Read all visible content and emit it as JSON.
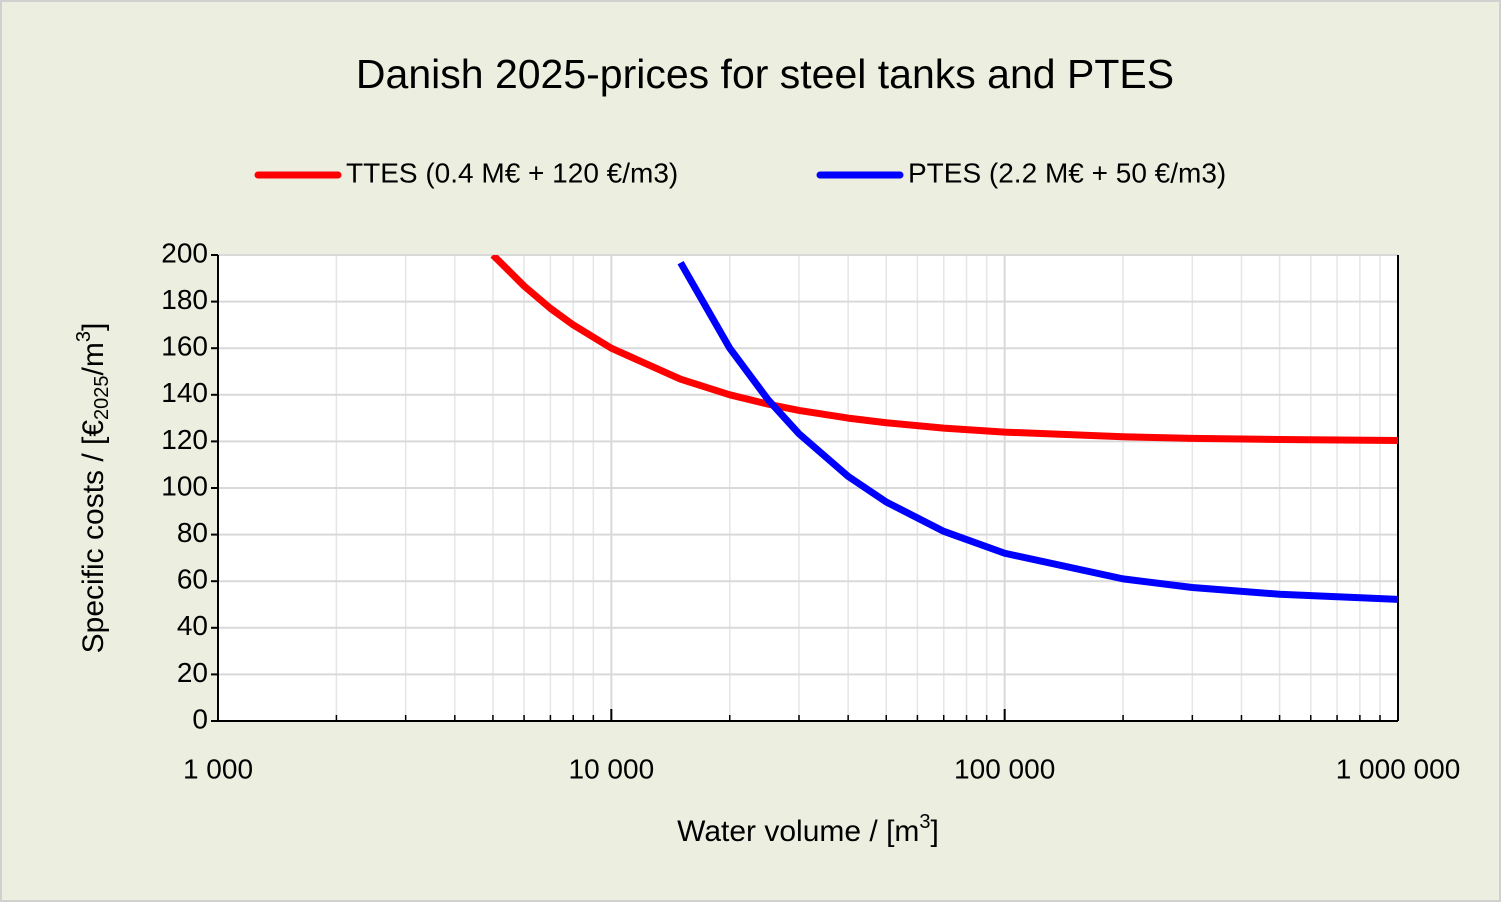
{
  "chart_data": {
    "type": "line",
    "title": "Danish 2025-prices for steel tanks and PTES",
    "x_label": [
      "Water volume / [m",
      "3",
      "]"
    ],
    "y_label": [
      "Specific costs / [€",
      "2025",
      "/m",
      "3",
      "]"
    ],
    "x": [
      5000,
      6000,
      7000,
      8000,
      10000,
      15000,
      20000,
      25000,
      30000,
      40000,
      50000,
      70000,
      100000,
      200000,
      300000,
      500000,
      1000000
    ],
    "series": [
      {
        "name": "TTES (0.4 M€ + 120 €/m3)",
        "color": "#ff0000",
        "values": [
          200,
          186.7,
          177.1,
          170,
          160,
          146.7,
          140,
          136,
          133.3,
          130,
          128,
          125.7,
          124,
          122,
          121.3,
          120.8,
          120.4
        ]
      },
      {
        "name": "PTES (2.2 M€ + 50 €/m3)",
        "color": "#0000ff",
        "values": [
          null,
          null,
          null,
          null,
          null,
          196.7,
          160,
          138,
          123.3,
          105,
          94,
          81.4,
          72,
          61,
          57.3,
          54.4,
          52.2
        ]
      }
    ],
    "x_log": true,
    "xlim": [
      1000,
      1000000
    ],
    "xticks": [
      {
        "value": 1000,
        "label": "1 000"
      },
      {
        "value": 10000,
        "label": "10 000"
      },
      {
        "value": 100000,
        "label": "100 000"
      },
      {
        "value": 1000000,
        "label": "1 000 000"
      }
    ],
    "x_minor_grid": [
      2000,
      3000,
      4000,
      5000,
      6000,
      7000,
      8000,
      9000,
      20000,
      30000,
      40000,
      50000,
      60000,
      70000,
      80000,
      90000,
      200000,
      300000,
      400000,
      500000,
      600000,
      700000,
      800000,
      900000
    ],
    "ylim": [
      0,
      200
    ],
    "yticks": [
      0,
      20,
      40,
      60,
      80,
      100,
      120,
      140,
      160,
      180,
      200
    ],
    "grid": true,
    "legend": "top"
  }
}
